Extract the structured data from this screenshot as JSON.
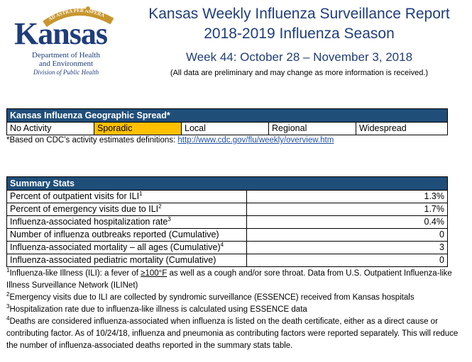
{
  "logo": {
    "arc_text": "AD ASTRA PER ASPERA",
    "name": "Kansas",
    "dept_line1": "Department of Health",
    "dept_line2": "and Environment",
    "division": "Division of Public Health"
  },
  "header": {
    "title": "Kansas Weekly Influenza Surveillance Report",
    "season": "2018-2019 Influenza Season",
    "week": "Week 44: October 28 – November 3, 2018",
    "disclaimer": "(All data are preliminary and may change as more information is received.)"
  },
  "geo_spread": {
    "title": "Kansas Influenza Geographic Spread*",
    "levels": [
      "No Activity",
      "Sporadic",
      "Local",
      "Regional",
      "Widespread"
    ],
    "current_level": "Sporadic",
    "highlight_color": "#ffc000",
    "note_prefix": "*Based on CDC’s activity estimates definitions: ",
    "note_link": "http://www.cdc.gov/flu/weekly/overview.htm"
  },
  "summary": {
    "title": "Summary Stats",
    "rows": [
      {
        "label": "Percent of outpatient visits for ILI",
        "sup": "1",
        "value": "1.3%"
      },
      {
        "label": "Percent of emergency visits due to ILI",
        "sup": "2",
        "value": "1.7%"
      },
      {
        "label": "Influenza-associated hospitalization rate",
        "sup": "3",
        "value": "0.4%"
      },
      {
        "label": "Number of influenza outbreaks reported (Cumulative)",
        "sup": "",
        "value": "0"
      },
      {
        "label": "Influenza-associated mortality – all ages (Cumulative)",
        "sup": "4",
        "value": "3"
      },
      {
        "label": "Influenza-associated pediatric mortality (Cumulative)",
        "sup": "",
        "value": "0"
      }
    ]
  },
  "footnotes": {
    "n1_sup": "1",
    "n1_a": "Influenza-like Illness (ILI): a fever of ",
    "n1_ge": "≥100°F",
    "n1_b": " as well as a cough and/or sore throat. Data from U.S. Outpatient Influenza-like Illness Surveillance Network (ILINet)",
    "n2_sup": "2",
    "n2": "Emergency visits due to ILI are collected by syndromic surveillance (ESSENCE) received from Kansas hospitals",
    "n3_sup": "3",
    "n3": "Hospitalization rate due to influenza-like illness is calculated using ESSENCE data",
    "n4_sup": "4",
    "n4": "Deaths are considered influenza-associated when influenza is listed on the death certificate, either as a direct cause or contributing factor. As of 10/24/18, influenza and pneumonia as contributing factors were reported separately. This will reduce the number of influenza-associated deaths reported in the summary stats table."
  },
  "colors": {
    "brand_blue": "#1f3d7a",
    "header_fill": "#1f4e79"
  }
}
